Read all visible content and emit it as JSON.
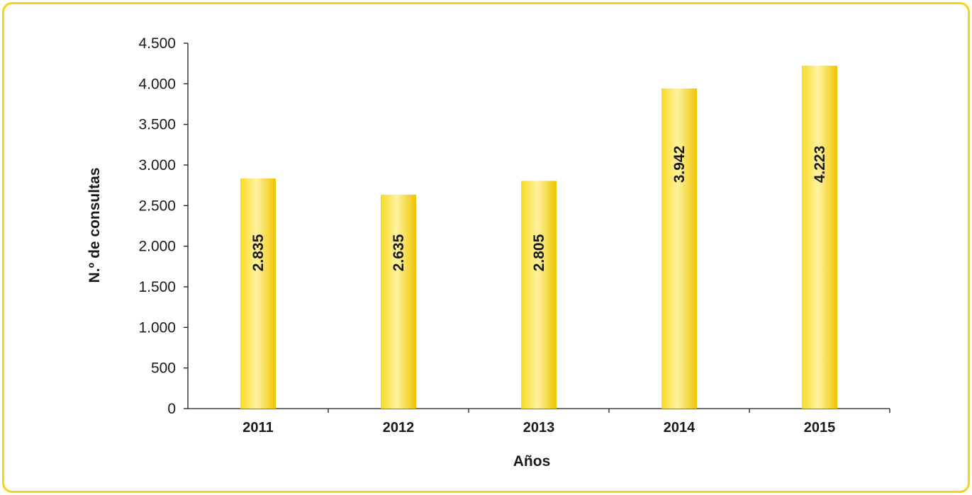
{
  "chart_data": {
    "type": "bar",
    "categories": [
      "2011",
      "2012",
      "2013",
      "2014",
      "2015"
    ],
    "values": [
      2835,
      2635,
      2805,
      3942,
      4223
    ],
    "data_labels": [
      "2.835",
      "2.635",
      "2.805",
      "3.942",
      "4.223"
    ],
    "title": "",
    "xlabel": "Años",
    "ylabel": "N.º de consultas",
    "ylim": [
      0,
      4500
    ],
    "yticks": [
      0,
      500,
      1000,
      1500,
      2000,
      2500,
      3000,
      3500,
      4000,
      4500
    ],
    "ytick_labels": [
      "0",
      "500",
      "1.000",
      "1.500",
      "2.000",
      "2.500",
      "3.000",
      "3.500",
      "4.000",
      "4.500"
    ],
    "grid": false,
    "legend": "none",
    "colors": {
      "bar_light": "#fff2a0",
      "bar_mid": "#f8da22",
      "bar_dark": "#eec400",
      "frame": "#f6d21b",
      "axis": "#1a1a1a"
    }
  }
}
